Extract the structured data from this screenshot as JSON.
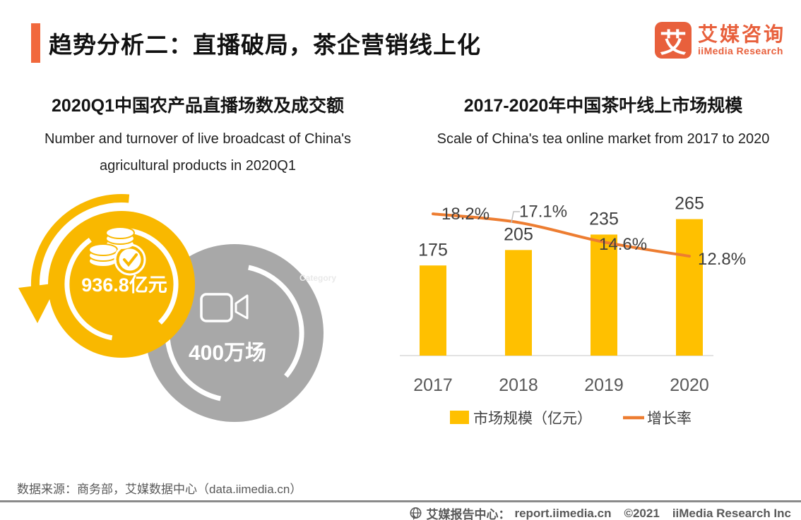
{
  "header": {
    "title": "趋势分析二：直播破局，茶企营销线上化",
    "logo": {
      "glyph": "艾",
      "name_cn": "艾媒咨询",
      "name_en": "iiMedia Research"
    }
  },
  "chart_data": [
    {
      "id": "live-broadcast-bubbles",
      "type": "bubble",
      "title": "2020Q1中国农产品直播场数及成交额",
      "subtitle": "Number and turnover of live broadcast of China's agricultural products in 2020Q1",
      "points": [
        {
          "label": "成交额",
          "value": 936.8,
          "unit": "亿元",
          "display": "936.8亿元",
          "color": "#F9B800"
        },
        {
          "label": "直播场数",
          "value": 400,
          "unit": "万场",
          "display": "400万场",
          "color": "#A8A8A8"
        }
      ],
      "watermark": "Category"
    },
    {
      "id": "tea-online-market",
      "type": "bar",
      "title": "2017-2020年中国茶叶线上市场规模",
      "subtitle": "Scale of China's tea online market from 2017 to 2020",
      "categories": [
        "2017",
        "2018",
        "2019",
        "2020"
      ],
      "series": [
        {
          "name": "市场规模（亿元）",
          "type": "bar",
          "values": [
            175,
            205,
            235,
            265
          ],
          "color": "#FFC000"
        },
        {
          "name": "增长率",
          "type": "line",
          "values": [
            18.2,
            17.1,
            14.6,
            12.8
          ],
          "labels": [
            "18.2%",
            "17.1%",
            "14.6%",
            "12.8%"
          ],
          "color": "#ED7D31"
        }
      ],
      "legend_position": "bottom",
      "grid": false,
      "ylim": [
        0,
        320
      ]
    }
  ],
  "source_note": "数据来源：商务部，艾媒数据中心（data.iimedia.cn）",
  "footer": {
    "report_center": "艾媒报告中心：",
    "url": "report.iimedia.cn",
    "copyright": "©2021",
    "company": "iiMedia Research Inc"
  },
  "colors": {
    "accent_orange": "#F1683C",
    "logo_orange": "#E8603C",
    "bar_yellow": "#FFC000",
    "bubble_yellow": "#F9B800",
    "bubble_gray": "#A8A8A8",
    "line_orange": "#ED7D31",
    "label_dark": "#404040",
    "axis_gray": "#D9D9D9",
    "text_gray": "#595959"
  }
}
